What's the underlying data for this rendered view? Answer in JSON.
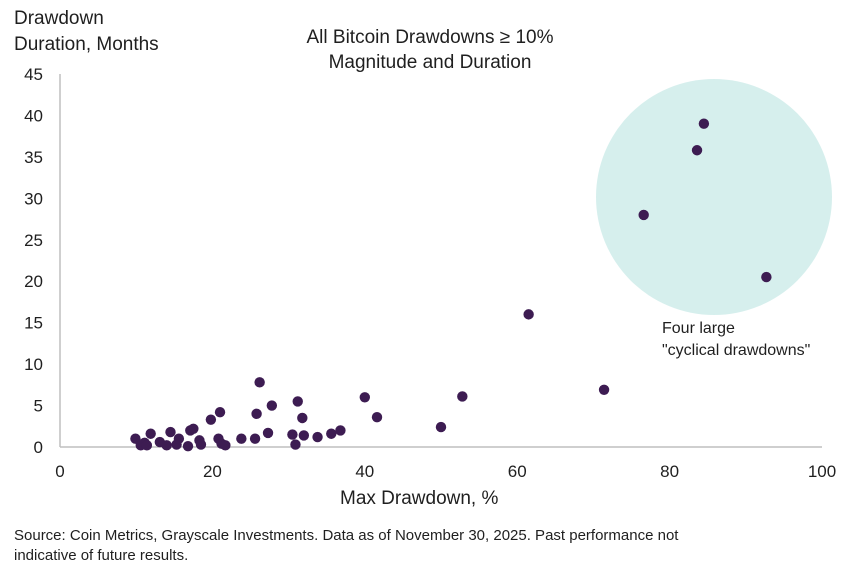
{
  "chart_data": {
    "type": "scatter",
    "title": [
      "All Bitcoin Drawdowns ≥ 10%",
      "Magnitude and Duration"
    ],
    "ylabel": [
      "Drawdown",
      "Duration, Months"
    ],
    "xlabel": "Max Drawdown, %",
    "xlim": [
      0,
      100
    ],
    "ylim": [
      0,
      45
    ],
    "xticks": [
      0,
      20,
      40,
      60,
      80,
      100
    ],
    "yticks": [
      0,
      5,
      10,
      15,
      20,
      25,
      30,
      35,
      40,
      45
    ],
    "grid": false,
    "point_color": "#3d1c52",
    "highlight_color": "#cfecea",
    "annotation": [
      "Four large",
      "\"cyclical drawdowns\""
    ],
    "points": [
      {
        "x": 9.9,
        "y": 1.0
      },
      {
        "x": 10.6,
        "y": 0.2
      },
      {
        "x": 11.1,
        "y": 0.5
      },
      {
        "x": 11.4,
        "y": 0.2
      },
      {
        "x": 11.9,
        "y": 1.6
      },
      {
        "x": 13.1,
        "y": 0.6
      },
      {
        "x": 14.0,
        "y": 0.2
      },
      {
        "x": 14.5,
        "y": 1.8
      },
      {
        "x": 15.3,
        "y": 0.3
      },
      {
        "x": 15.6,
        "y": 1.0
      },
      {
        "x": 16.8,
        "y": 0.1
      },
      {
        "x": 17.1,
        "y": 2.0
      },
      {
        "x": 17.5,
        "y": 2.2
      },
      {
        "x": 18.3,
        "y": 0.8
      },
      {
        "x": 18.5,
        "y": 0.3
      },
      {
        "x": 19.8,
        "y": 3.3
      },
      {
        "x": 20.8,
        "y": 1.0
      },
      {
        "x": 21.0,
        "y": 4.2
      },
      {
        "x": 21.2,
        "y": 0.4
      },
      {
        "x": 21.7,
        "y": 0.2
      },
      {
        "x": 23.8,
        "y": 1.0
      },
      {
        "x": 25.6,
        "y": 1.0
      },
      {
        "x": 25.8,
        "y": 4.0
      },
      {
        "x": 26.2,
        "y": 7.8
      },
      {
        "x": 27.3,
        "y": 1.7
      },
      {
        "x": 27.8,
        "y": 5.0
      },
      {
        "x": 30.5,
        "y": 1.5
      },
      {
        "x": 30.9,
        "y": 0.3
      },
      {
        "x": 31.2,
        "y": 5.5
      },
      {
        "x": 31.8,
        "y": 3.5
      },
      {
        "x": 32.0,
        "y": 1.4
      },
      {
        "x": 33.8,
        "y": 1.2
      },
      {
        "x": 35.6,
        "y": 1.6
      },
      {
        "x": 36.8,
        "y": 2.0
      },
      {
        "x": 40.0,
        "y": 6.0
      },
      {
        "x": 41.6,
        "y": 3.6
      },
      {
        "x": 50.0,
        "y": 2.4
      },
      {
        "x": 52.8,
        "y": 6.1
      },
      {
        "x": 61.5,
        "y": 16.0
      },
      {
        "x": 71.4,
        "y": 6.9
      },
      {
        "x": 76.6,
        "y": 28.0
      },
      {
        "x": 83.6,
        "y": 35.8
      },
      {
        "x": 84.5,
        "y": 39.0
      },
      {
        "x": 92.7,
        "y": 20.5
      }
    ]
  },
  "source": [
    "Source: Coin Metrics, Grayscale Investments. Data as of November 30, 2025. Past performance not",
    "indicative of future results."
  ]
}
